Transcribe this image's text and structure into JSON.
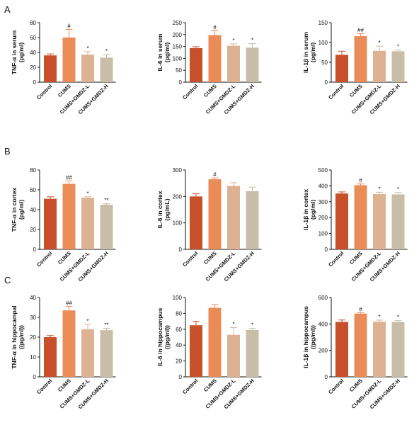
{
  "panel_labels": [
    "A",
    "B",
    "C"
  ],
  "colors": [
    "#c8502a",
    "#ea8c58",
    "#ddb293",
    "#c8bea8"
  ],
  "chart_data": [
    {
      "type": "bar",
      "row": 0,
      "col": 0,
      "ylabel": [
        "TNF-α in serum",
        "(pg/ml)"
      ],
      "ylim": [
        0,
        80
      ],
      "yticks": [
        0,
        20,
        40,
        60,
        80
      ],
      "categories": [
        "Control",
        "CUMS",
        "CUMS+GMDZ-L",
        "CUMS+GMDZ-H"
      ],
      "values": [
        36,
        60,
        37,
        33
      ],
      "errors": [
        2,
        11,
        4,
        4
      ],
      "annotations": [
        "",
        "#",
        "*",
        "*"
      ]
    },
    {
      "type": "bar",
      "row": 0,
      "col": 1,
      "ylabel": [
        "IL-6 in serum",
        "(pg/ml)"
      ],
      "ylim": [
        0,
        250
      ],
      "yticks": [
        0,
        50,
        100,
        150,
        200,
        250
      ],
      "categories": [
        "Control",
        "CUMS",
        "CUMS+GMDZ-L",
        "CUMS+GMDZ-H"
      ],
      "values": [
        143,
        198,
        153,
        145
      ],
      "errors": [
        6,
        18,
        8,
        17
      ],
      "annotations": [
        "",
        "#",
        "*",
        "*"
      ]
    },
    {
      "type": "bar",
      "row": 0,
      "col": 2,
      "ylabel": [
        "IL-1β in serum",
        "(pg/ml)"
      ],
      "ylim": [
        0,
        150
      ],
      "yticks": [
        0,
        50,
        100,
        150
      ],
      "categories": [
        "Control",
        "CUMS",
        "CUMS+GMDZ-L",
        "CUMS+GMDZ-H"
      ],
      "values": [
        69,
        116,
        79,
        78
      ],
      "errors": [
        9,
        6,
        12,
        3
      ],
      "annotations": [
        "",
        "##",
        "*",
        "*"
      ]
    },
    {
      "type": "bar",
      "row": 1,
      "col": 0,
      "ylabel": [
        "TNF-α in cortex",
        "(pg/ml)"
      ],
      "ylim": [
        0,
        80
      ],
      "yticks": [
        0,
        20,
        40,
        60,
        80
      ],
      "categories": [
        "Control",
        "CUMS",
        "CUMS+GMDZ-L",
        "CUMS+GMDZ-H"
      ],
      "values": [
        51,
        66,
        52,
        45
      ],
      "errors": [
        2,
        3,
        1,
        1
      ],
      "annotations": [
        "",
        "##",
        "*",
        "**"
      ]
    },
    {
      "type": "bar",
      "row": 1,
      "col": 1,
      "ylabel": [
        "IL-6 in cortex",
        "(pg/mL)"
      ],
      "ylim": [
        0,
        300
      ],
      "yticks": [
        0,
        100,
        200,
        300
      ],
      "categories": [
        "Control",
        "CUMS",
        "CUMS+GMDZ-L",
        "CUMS+GMDZ-H"
      ],
      "values": [
        200,
        265,
        240,
        220
      ],
      "errors": [
        10,
        5,
        12,
        15
      ],
      "annotations": [
        "",
        "#",
        "",
        ""
      ]
    },
    {
      "type": "bar",
      "row": 1,
      "col": 2,
      "ylabel": [
        "IL-1β in cortex",
        "(pg/ml)"
      ],
      "ylim": [
        0,
        500
      ],
      "yticks": [
        0,
        100,
        200,
        300,
        400,
        500
      ],
      "categories": [
        "Control",
        "CUMS",
        "CUMS+GMDZ-L",
        "CUMS+GMDZ-H"
      ],
      "values": [
        352,
        404,
        348,
        346
      ],
      "errors": [
        10,
        8,
        12,
        12
      ],
      "annotations": [
        "",
        "#",
        "*",
        "*"
      ]
    },
    {
      "type": "bar",
      "row": 2,
      "col": 0,
      "ylabel": [
        "TNF-α in hippocampal",
        "((pg/ml))"
      ],
      "ylim": [
        0,
        40
      ],
      "yticks": [
        0,
        10,
        20,
        30,
        40
      ],
      "categories": [
        "Control",
        "CUMS",
        "CUMS+GMDZ-L",
        "CUMS+GMDZ-H"
      ],
      "values": [
        20,
        33.5,
        24,
        23.5
      ],
      "errors": [
        0.8,
        2,
        2.5,
        1
      ],
      "annotations": [
        "",
        "##",
        "*",
        "**"
      ]
    },
    {
      "type": "bar",
      "row": 2,
      "col": 1,
      "ylabel": [
        "IL-6 in hippocampus",
        "((pg/ml))"
      ],
      "ylim": [
        0,
        100
      ],
      "yticks": [
        0,
        20,
        40,
        60,
        80,
        100
      ],
      "categories": [
        "Control",
        "CUMS",
        "CUMS+GMDZ-L",
        "CUMS+GMDZ-H"
      ],
      "values": [
        65,
        87,
        53,
        59
      ],
      "errors": [
        5,
        4,
        9,
        2
      ],
      "annotations": [
        "",
        "",
        "*",
        "*"
      ]
    },
    {
      "type": "bar",
      "row": 2,
      "col": 2,
      "ylabel": [
        "IL-1β in hippocampus",
        "((pg/ml))"
      ],
      "ylim": [
        0,
        600
      ],
      "yticks": [
        0,
        200,
        400,
        600
      ],
      "categories": [
        "Control",
        "CUMS",
        "CUMS+GMDZ-L",
        "CUMS+GMDZ-H"
      ],
      "values": [
        415,
        478,
        417,
        415
      ],
      "errors": [
        15,
        8,
        12,
        10
      ],
      "annotations": [
        "",
        "#",
        "*",
        "*"
      ]
    }
  ]
}
